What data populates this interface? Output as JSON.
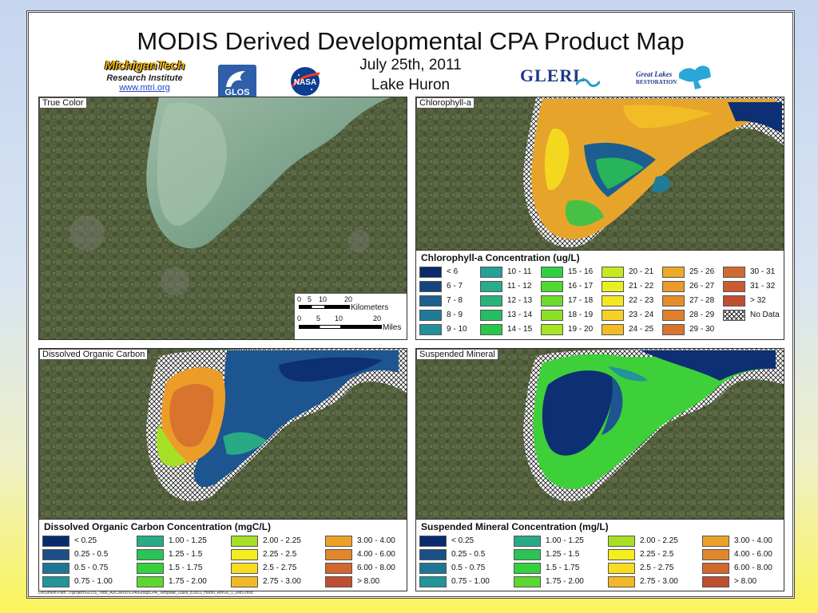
{
  "header": {
    "title": "MODIS Derived Developmental CPA Product Map",
    "date": "July 25th, 2011",
    "lake": "Lake Huron"
  },
  "logos": {
    "mtri_line1": "MichiganTech",
    "mtri_line2": "Research Institute",
    "mtri_url": "www.mtri.org",
    "glos": "GLOS",
    "nasa": "NASA",
    "glerl": "GLERL",
    "glr_line1": "Great Lakes",
    "glr_line2": "RESTORATION"
  },
  "panels": {
    "true_color": {
      "label": "True Color"
    },
    "chlorophyll": {
      "label": "Chlorophyll-a"
    },
    "doc": {
      "label": "Dissolved Organic Carbon"
    },
    "sm": {
      "label": "Suspended Mineral"
    }
  },
  "scalebar": {
    "km_ticks": [
      "0",
      "5",
      "10",
      "20"
    ],
    "km_unit": "Kilometers",
    "mi_ticks": [
      "0",
      "5",
      "10",
      "20"
    ],
    "mi_unit": "Miles"
  },
  "legends": {
    "chlorophyll": {
      "title": "Chlorophyll-a Concentration (ug/L)",
      "items": [
        {
          "label": "< 6",
          "color": "#0a2a6e"
        },
        {
          "label": "6 - 7",
          "color": "#14457e"
        },
        {
          "label": "7 - 8",
          "color": "#1d6090"
        },
        {
          "label": "8 - 9",
          "color": "#217a98"
        },
        {
          "label": "9 - 10",
          "color": "#23909a"
        },
        {
          "label": "10 - 11",
          "color": "#26a098"
        },
        {
          "label": "11 - 12",
          "color": "#28ac8c"
        },
        {
          "label": "12 - 13",
          "color": "#28b47a"
        },
        {
          "label": "13 - 14",
          "color": "#26bc62"
        },
        {
          "label": "14 - 15",
          "color": "#2ac64a"
        },
        {
          "label": "15 - 16",
          "color": "#30d040"
        },
        {
          "label": "16 - 17",
          "color": "#4fd834"
        },
        {
          "label": "17 - 18",
          "color": "#6cdc2c"
        },
        {
          "label": "18 - 19",
          "color": "#8ee026"
        },
        {
          "label": "19 - 20",
          "color": "#a8e424"
        },
        {
          "label": "20 - 21",
          "color": "#c6ea20"
        },
        {
          "label": "21 - 22",
          "color": "#e8f020"
        },
        {
          "label": "22 - 23",
          "color": "#f6e820"
        },
        {
          "label": "23 - 24",
          "color": "#f6d024"
        },
        {
          "label": "24 - 25",
          "color": "#f2bc26"
        },
        {
          "label": "25 - 26",
          "color": "#eeaa26"
        },
        {
          "label": "26 - 27",
          "color": "#ea9c28"
        },
        {
          "label": "27 - 28",
          "color": "#e48e2a"
        },
        {
          "label": "28 - 29",
          "color": "#de802c"
        },
        {
          "label": "29 - 30",
          "color": "#d8742e"
        },
        {
          "label": "30 - 31",
          "color": "#d06a30"
        },
        {
          "label": "31 - 32",
          "color": "#c85c30"
        },
        {
          "label": "> 32",
          "color": "#c04e30"
        },
        {
          "label": "No Data",
          "color": "hatch"
        }
      ]
    },
    "doc": {
      "title": "Dissolved Organic Carbon Concentration (mgC/L)",
      "items": [
        {
          "label": "< 0.25",
          "color": "#0a2a6e"
        },
        {
          "label": "0.25 - 0.5",
          "color": "#1a4f88"
        },
        {
          "label": "0.5 - 0.75",
          "color": "#1f7596"
        },
        {
          "label": "0.75 - 1.00",
          "color": "#22949a"
        },
        {
          "label": "1.00 - 1.25",
          "color": "#28aa86"
        },
        {
          "label": "1.25 - 1.5",
          "color": "#2ac456"
        },
        {
          "label": "1.5 - 1.75",
          "color": "#36d03c"
        },
        {
          "label": "1.75 - 2.00",
          "color": "#5cd830"
        },
        {
          "label": "2.00 - 2.25",
          "color": "#a6e024"
        },
        {
          "label": "2.25 - 2.5",
          "color": "#f4ee1e"
        },
        {
          "label": "2.5 - 2.75",
          "color": "#f8dc22"
        },
        {
          "label": "2.75 - 3.00",
          "color": "#f2b826"
        },
        {
          "label": "3.00 - 4.00",
          "color": "#eca128"
        },
        {
          "label": "4.00 - 6.00",
          "color": "#e2862c"
        },
        {
          "label": "6.00 - 8.00",
          "color": "#d0682e"
        },
        {
          "label": "> 8.00",
          "color": "#c04e30"
        }
      ]
    },
    "sm": {
      "title": "Suspended Mineral Concentration (mg/L)",
      "items": [
        {
          "label": "< 0.25",
          "color": "#0a2a6e"
        },
        {
          "label": "0.25 - 0.5",
          "color": "#1a4f88"
        },
        {
          "label": "0.5 - 0.75",
          "color": "#1f7596"
        },
        {
          "label": "0.75 - 1.00",
          "color": "#22949a"
        },
        {
          "label": "1.00 - 1.25",
          "color": "#28aa86"
        },
        {
          "label": "1.25 - 1.5",
          "color": "#2ac456"
        },
        {
          "label": "1.5 - 1.75",
          "color": "#36d03c"
        },
        {
          "label": "1.75 - 2.00",
          "color": "#5cd830"
        },
        {
          "label": "2.00 - 2.25",
          "color": "#a6e024"
        },
        {
          "label": "2.25 - 2.5",
          "color": "#f4ee1e"
        },
        {
          "label": "2.5 - 2.75",
          "color": "#f8dc22"
        },
        {
          "label": "2.75 - 3.00",
          "color": "#f2b826"
        },
        {
          "label": "3.00 - 4.00",
          "color": "#eca128"
        },
        {
          "label": "4.00 - 6.00",
          "color": "#e2862c"
        },
        {
          "label": "6.00 - 8.00",
          "color": "#d0682e"
        },
        {
          "label": "> 8.00",
          "color": "#c04e30"
        }
      ]
    }
  },
  "document_path": "Document Path: J:\\project\\GLOS_Tribs_ADC\\MXD\\CPA\\GroupCPA_Template_Class_8.5x11_Huron_Ann10_1_DMS.mxd"
}
